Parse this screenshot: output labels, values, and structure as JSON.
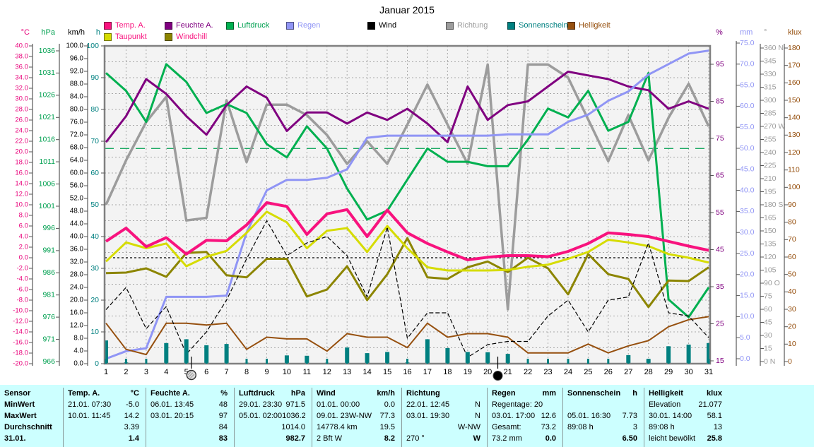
{
  "title": "Januar 2015",
  "legend": {
    "row1": [
      {
        "label": "Temp. A.",
        "swatch": "#F8127E",
        "text_color": "#F8127E"
      },
      {
        "label": "Feuchte A.",
        "swatch": "#800080",
        "text_color": "#800080"
      },
      {
        "label": "Luftdruck",
        "swatch": "#00B050",
        "text_color": "#00A050"
      },
      {
        "label": "Regen",
        "swatch": "#9095F5",
        "text_color": "#9095F5"
      },
      {
        "label": "Wind",
        "swatch": "#000000",
        "text_color": "#000000"
      },
      {
        "label": "Richtung",
        "swatch": "#9C9C9C",
        "text_color": "#9C9C9C"
      },
      {
        "label": "Sonnenschein",
        "swatch": "#008080",
        "text_color": "#008080"
      },
      {
        "label": "Helligkeit",
        "swatch": "#96500F",
        "text_color": "#96500F"
      }
    ],
    "row2": [
      {
        "label": "Taupunkt",
        "swatch": "#D6DC00",
        "text_color": "#F8127E"
      },
      {
        "label": "Windchill",
        "swatch": "#8C8500",
        "text_color": "#F8127E"
      }
    ]
  },
  "units": {
    "left": [
      {
        "key": "celsius",
        "label": "°C",
        "color": "#E8007A"
      },
      {
        "key": "hpa",
        "label": "hPa",
        "color": "#00A050"
      },
      {
        "key": "kmh",
        "label": "km/h",
        "color": "#000000"
      },
      {
        "key": "hours",
        "label": "h",
        "color": "#008080"
      }
    ],
    "right": [
      {
        "key": "percent",
        "label": "%",
        "color": "#800080"
      },
      {
        "key": "mm",
        "label": "mm",
        "color": "#9095F5"
      },
      {
        "key": "degrees",
        "label": "°",
        "color": "#9C9C9C"
      },
      {
        "key": "klux",
        "label": "klux",
        "color": "#96500F"
      }
    ]
  },
  "axes": {
    "celsius": {
      "unit": "°C",
      "color": "#E8007A",
      "labels": [
        "40.0",
        "38.0",
        "36.0",
        "34.0",
        "32.0",
        "30.0",
        "28.0",
        "26.0",
        "24.0",
        "22.0",
        "20.0",
        "18.0",
        "16.0",
        "14.0",
        "12.0",
        "10.0",
        "8.0",
        "6.0",
        "4.0",
        "2.0",
        "0.0",
        "-2.0",
        "-4.0",
        "-6.0",
        "-8.0",
        "-10.0",
        "-12.0",
        "-14.0",
        "-16.0",
        "-18.0",
        "-20.0"
      ]
    },
    "hpa": {
      "unit": "hPa",
      "color": "#00A050",
      "labels": [
        "1036",
        "1031",
        "1026",
        "1021",
        "1016",
        "1011",
        "1006",
        "1001",
        "996",
        "991",
        "986",
        "981",
        "976",
        "971",
        "966"
      ]
    },
    "kmh": {
      "unit": "km/h",
      "color": "#000000",
      "labels": [
        "100.0",
        "96.0",
        "92.0",
        "88.0",
        "84.0",
        "80.0",
        "76.0",
        "72.0",
        "68.0",
        "64.0",
        "60.0",
        "56.0",
        "52.0",
        "48.0",
        "44.0",
        "40.0",
        "36.0",
        "32.0",
        "28.0",
        "24.0",
        "20.0",
        "16.0",
        "12.0",
        "8.0",
        "4.0",
        "0.0"
      ]
    },
    "hours": {
      "unit": "h",
      "color": "#008080",
      "labels": [
        "100",
        "90",
        "80",
        "70",
        "60",
        "50",
        "40",
        "30",
        "20",
        "10",
        "0"
      ]
    },
    "percent": {
      "unit": "%",
      "color": "#800080",
      "labels": [
        "95",
        "85",
        "75",
        "65",
        "55",
        "45",
        "35",
        "25",
        "15"
      ]
    },
    "mm": {
      "unit": "mm",
      "color": "#9095F5",
      "labels": [
        "75.0",
        "70.0",
        "65.0",
        "60.0",
        "55.0",
        "50.0",
        "45.0",
        "40.0",
        "35.0",
        "30.0",
        "25.0",
        "20.0",
        "15.0",
        "10.0",
        "5.0",
        "0.0"
      ]
    },
    "degrees": {
      "unit": "°",
      "color": "#9C9C9C",
      "labels": [
        "360 N",
        "345",
        "330",
        "315",
        "300",
        "285",
        "270 W",
        "255",
        "240",
        "225",
        "210",
        "195",
        "180 S",
        "165",
        "150",
        "135",
        "120",
        "105",
        "90 O",
        "75",
        "60",
        "45",
        "30",
        "15",
        "0 N"
      ]
    },
    "klux": {
      "unit": "klux",
      "color": "#96500F",
      "labels": [
        "180",
        "170",
        "160",
        "150",
        "140",
        "130",
        "120",
        "110",
        "100",
        "90",
        "80",
        "70",
        "60",
        "50",
        "40",
        "30",
        "20",
        "10",
        "0"
      ]
    }
  },
  "x_axis": {
    "day_labels": [
      "1",
      "2",
      "3",
      "4",
      "5",
      "6",
      "7",
      "8",
      "9",
      "10",
      "11",
      "12",
      "13",
      "14",
      "15",
      "16",
      "17",
      "18",
      "19",
      "20",
      "21",
      "22",
      "23",
      "24",
      "25",
      "26",
      "27",
      "28",
      "29",
      "30",
      "31"
    ]
  },
  "moon_markers": [
    {
      "day": 5.25,
      "phase": "full-moon"
    },
    {
      "day": 20.5,
      "phase": "new-moon"
    }
  ],
  "chart_data": {
    "type": "line",
    "title": "Januar 2015",
    "x": [
      1,
      2,
      3,
      4,
      5,
      6,
      7,
      8,
      9,
      10,
      11,
      12,
      13,
      14,
      15,
      16,
      17,
      18,
      19,
      20,
      21,
      22,
      23,
      24,
      25,
      26,
      27,
      28,
      29,
      30,
      31
    ],
    "series": [
      {
        "name": "Temp. A.",
        "unit": "°C",
        "axis": "celsius",
        "color": "#F8127E",
        "width": 4,
        "values": [
          3.1,
          5.6,
          2.1,
          3.8,
          0.7,
          3.3,
          3.2,
          6.2,
          10.4,
          9.7,
          4.4,
          8.3,
          9.1,
          4.0,
          9.0,
          4.7,
          2.7,
          1.1,
          -0.4,
          0.1,
          0.4,
          0.4,
          0.2,
          1.2,
          2.7,
          4.7,
          4.4,
          4.0,
          3.1,
          2.2,
          1.4
        ]
      },
      {
        "name": "Taupunkt",
        "unit": "°C",
        "axis": "celsius",
        "color": "#D6DC00",
        "width": 3,
        "values": [
          -0.7,
          2.9,
          1.8,
          2.7,
          -1.6,
          0.2,
          1.3,
          4.7,
          8.7,
          6.7,
          1.8,
          5.1,
          5.6,
          1.1,
          6.0,
          1.8,
          -1.8,
          -2.4,
          -2.4,
          -2.4,
          -2.3,
          -1.7,
          -1.3,
          -0.2,
          1.1,
          3.4,
          2.9,
          2.2,
          0.7,
          0.0,
          -0.9
        ]
      },
      {
        "name": "Feuchte A.",
        "unit": "%",
        "axis": "percent",
        "color": "#800080",
        "width": 3,
        "values": [
          74,
          81,
          91,
          87,
          81,
          76,
          84,
          89,
          86,
          77,
          82,
          82,
          79,
          82,
          80,
          83,
          79,
          74,
          89,
          80,
          84,
          85,
          89,
          93,
          92,
          91,
          89,
          88,
          83,
          85,
          83
        ]
      },
      {
        "name": "Windchill",
        "unit": "°C",
        "axis": "celsius",
        "color": "#8C8500",
        "width": 3,
        "values": [
          -2.9,
          -2.8,
          -2.0,
          -3.6,
          0.9,
          1.1,
          -3.3,
          -3.7,
          -0.2,
          -0.2,
          -7.3,
          -6.0,
          -1.6,
          -8.0,
          -3.1,
          3.7,
          -3.7,
          -4.0,
          -1.8,
          -0.7,
          -2.7,
          0.0,
          -2.0,
          -6.9,
          0.7,
          -3.1,
          -4.0,
          -9.3,
          -4.3,
          -4.4,
          -1.8
        ]
      },
      {
        "name": "Luftdruck",
        "unit": "hPa",
        "axis": "hpa",
        "color": "#00B050",
        "width": 3,
        "values": [
          1031,
          1027,
          1020,
          1033,
          1029,
          1022,
          1024,
          1022,
          1015,
          1012,
          1019,
          1014,
          1005,
          998,
          1000,
          1007,
          1014,
          1011,
          1011,
          1010,
          1010,
          1016,
          1023,
          1021,
          1027,
          1018,
          1020,
          1031,
          980,
          976,
          982.7
        ]
      },
      {
        "name": "Regen",
        "unit": "mm",
        "axis": "mm",
        "color": "#9095F5",
        "width": 3,
        "values": [
          0,
          1.8,
          2.5,
          14.7,
          14.7,
          14.7,
          15,
          30,
          40,
          42.5,
          42.5,
          43,
          45,
          52.5,
          53,
          53,
          53,
          53,
          53,
          53,
          53.3,
          53.3,
          53.3,
          56.3,
          58,
          61.3,
          63.5,
          67.5,
          70,
          72.5,
          73.2
        ]
      },
      {
        "name": "Wind",
        "unit": "km/h",
        "axis": "kmh",
        "color": "#000000",
        "width": 1.2,
        "dash": "6 3",
        "values": [
          17,
          24,
          11,
          18,
          3,
          10,
          20,
          33,
          45,
          34,
          38,
          40,
          34,
          21,
          43,
          8,
          16,
          16,
          2,
          6,
          7,
          7,
          15,
          20,
          10,
          20,
          21,
          38,
          16,
          15,
          8.2
        ]
      },
      {
        "name": "Richtung",
        "unit": "°",
        "axis": "degrees",
        "color": "#9C9C9C",
        "width": 3.5,
        "values": [
          180,
          231,
          275,
          304,
          162,
          165,
          300,
          229,
          295,
          295,
          283,
          260,
          227,
          253,
          227,
          272,
          318,
          272,
          227,
          341,
          60,
          341,
          341,
          326,
          278,
          230,
          283,
          231,
          280,
          319,
          270
        ]
      },
      {
        "name": "Sonnenschein",
        "unit": "h",
        "axis": "hours",
        "color": "#008080",
        "type": "bar",
        "values": [
          7.3,
          0.4,
          0.2,
          6.5,
          7.7,
          5.8,
          6.2,
          0.3,
          0.2,
          2.6,
          2.5,
          0.3,
          5.1,
          3.3,
          3.7,
          0.4,
          7.7,
          4.9,
          3.7,
          3.6,
          3.1,
          0,
          0.2,
          0.2,
          0.2,
          0,
          2.7,
          1.5,
          5.5,
          6.0,
          6.5
        ]
      },
      {
        "name": "Helligkeit",
        "unit": "klux",
        "axis": "klux",
        "color": "#96500F",
        "width": 2,
        "values": [
          22,
          7,
          4,
          22,
          22,
          21,
          22,
          7,
          14,
          13,
          13,
          6,
          16,
          14,
          14,
          8,
          22,
          14,
          16,
          16,
          14,
          5,
          5,
          5,
          10,
          5,
          9,
          12,
          20,
          24,
          25.8
        ]
      }
    ],
    "reference_lines": [
      {
        "axis": "celsius",
        "value": 0,
        "color": "#000000",
        "dash": "3 3"
      },
      {
        "axis": "hpa",
        "value": 1014,
        "color": "#00A050",
        "dash": "13 9"
      }
    ],
    "legend_position": "top",
    "grid": true
  },
  "table": {
    "row_labels": [
      "Sensor",
      "MinWert",
      "MaxWert",
      "Durchschnitt",
      "31.01."
    ],
    "columns": [
      {
        "name": "Temp. A.",
        "unit": "°C",
        "rows": [
          [
            "21.01.  07:30",
            "-5.0"
          ],
          [
            "10.01.  11:45",
            "14.2"
          ],
          [
            "",
            "3.39"
          ],
          [
            "",
            "1.4"
          ]
        ]
      },
      {
        "name": "Feuchte A.",
        "unit": "%",
        "rows": [
          [
            "06.01.  13:45",
            "48"
          ],
          [
            "03.01.  20:15",
            "97"
          ],
          [
            "",
            "84"
          ],
          [
            "",
            "83"
          ]
        ]
      },
      {
        "name": "Luftdruck",
        "unit": "hPa",
        "rows": [
          [
            "29.01.  23:30",
            "971.5"
          ],
          [
            "05.01.  02:00",
            "1036.2"
          ],
          [
            "",
            "1014.0"
          ],
          [
            "",
            "982.7"
          ]
        ]
      },
      {
        "name": "Wind",
        "unit": "km/h",
        "rows": [
          [
            "01.01.  00:00",
            "0.0"
          ],
          [
            "09.01.  23W-NW",
            "77.3"
          ],
          [
            "14778.4 km",
            "19.5"
          ],
          [
            "2 Bft W",
            "8.2"
          ]
        ]
      },
      {
        "name": "Richtung",
        "unit": "",
        "rows": [
          [
            "22.01.  12:45",
            "N"
          ],
          [
            "03.01.  19:30",
            "N"
          ],
          [
            "",
            "W-NW"
          ],
          [
            "270 °",
            "W"
          ]
        ]
      },
      {
        "name": "Regen",
        "unit": "mm",
        "rows": [
          [
            "Regentage: 20",
            ""
          ],
          [
            "03.01.  17:00",
            "12.6"
          ],
          [
            "Gesamt:",
            "73.2"
          ],
          [
            "73.2 mm",
            "0.0"
          ]
        ]
      },
      {
        "name": "Sonnenschein",
        "unit": "h",
        "rows": [
          [
            "",
            ""
          ],
          [
            "05.01.  16:30",
            "7.73"
          ],
          [
            "89:08 h",
            "3"
          ],
          [
            "",
            "6.50"
          ]
        ]
      },
      {
        "name": "Helligkeit",
        "unit": "klux",
        "rows": [
          [
            "Elevation",
            "21.077"
          ],
          [
            "30.01.  14:00",
            "58.1"
          ],
          [
            "89:08 h",
            "13"
          ],
          [
            "leicht bewölkt",
            "25.8"
          ]
        ]
      }
    ]
  }
}
